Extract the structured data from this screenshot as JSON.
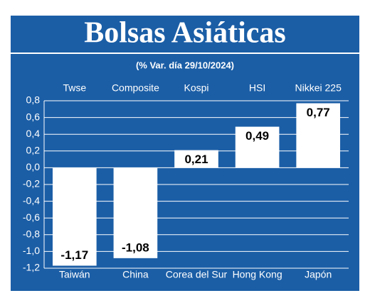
{
  "chart_data": {
    "type": "bar",
    "title": "Bolsas Asiáticas",
    "subtitle": "(% Var. día 29/10/2024)",
    "index_names": [
      "Twse",
      "Composite",
      "Kospi",
      "HSI",
      "Nikkei 225"
    ],
    "categories": [
      "Taiwán",
      "China",
      "Corea del Sur",
      "Hong Kong",
      "Japón"
    ],
    "values": [
      -1.17,
      -1.08,
      0.21,
      0.49,
      0.77
    ],
    "value_labels": [
      "-1,17",
      "-1,08",
      "0,21",
      "0,49",
      "0,77"
    ],
    "color": "#ffffff",
    "background": "#1b5ea6",
    "ylim": [
      -1.2,
      0.8
    ],
    "yticks": [
      {
        "value": -1.2,
        "label": "-1,2"
      },
      {
        "value": -1.0,
        "label": "-1,0"
      },
      {
        "value": -0.8,
        "label": "-0,8"
      },
      {
        "value": -0.6,
        "label": "-0,6"
      },
      {
        "value": -0.4,
        "label": "-0,4"
      },
      {
        "value": -0.2,
        "label": "-0,2"
      },
      {
        "value": 0.0,
        "label": "0,0"
      },
      {
        "value": 0.2,
        "label": "0,2"
      },
      {
        "value": 0.4,
        "label": "0,4"
      },
      {
        "value": 0.6,
        "label": "0,6"
      },
      {
        "value": 0.8,
        "label": "0,8"
      }
    ],
    "grid": true
  }
}
